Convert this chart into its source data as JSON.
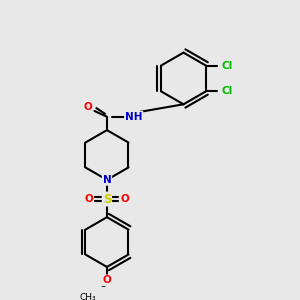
{
  "background_color": "#e8e8e8",
  "bond_color": "#000000",
  "atom_colors": {
    "N": "#0000cc",
    "O": "#ff0000",
    "S": "#cccc00",
    "Cl": "#00bb00",
    "C": "#000000"
  },
  "figsize": [
    3.0,
    3.0
  ],
  "dpi": 100
}
